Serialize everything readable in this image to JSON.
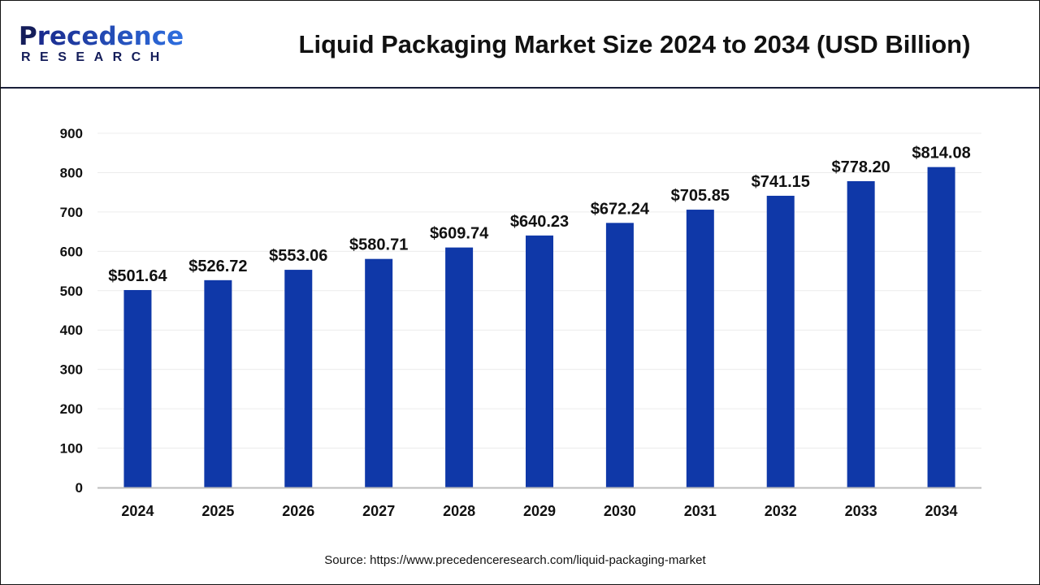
{
  "logo": {
    "line1_initial": "P",
    "line1_rest": "recedence",
    "line2": "RESEARCH"
  },
  "header": {
    "title": "Liquid Packaging Market Size 2024 to 2034 (USD Billion)"
  },
  "footer": {
    "source": "Source: https://www.precedenceresearch.com/liquid-packaging-market"
  },
  "chart_data": {
    "type": "bar",
    "title": "Liquid Packaging Market Size 2024 to 2034 (USD Billion)",
    "categories": [
      "2024",
      "2025",
      "2026",
      "2027",
      "2028",
      "2029",
      "2030",
      "2031",
      "2032",
      "2033",
      "2034"
    ],
    "values": [
      501.64,
      526.72,
      553.06,
      580.71,
      609.74,
      640.23,
      672.24,
      705.85,
      741.15,
      778.2,
      814.08
    ],
    "data_labels": [
      "$501.64",
      "$526.72",
      "$553.06",
      "$580.71",
      "$609.74",
      "$640.23",
      "$672.24",
      "$705.85",
      "$741.15",
      "$778.20",
      "$814.08"
    ],
    "yticks": [
      0,
      100,
      200,
      300,
      400,
      500,
      600,
      700,
      800,
      900
    ],
    "ylim": [
      0,
      900
    ],
    "xlabel": "",
    "ylabel": "",
    "grid": true,
    "legend": "none",
    "bar_color": "#0f38a8"
  }
}
